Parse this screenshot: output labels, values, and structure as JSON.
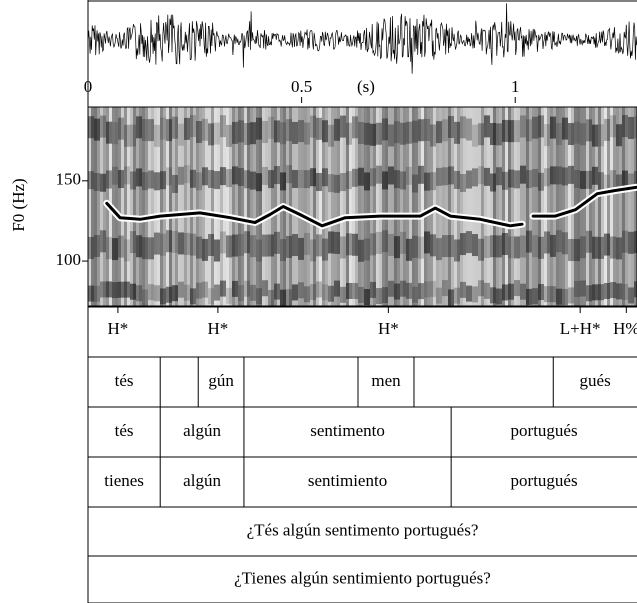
{
  "chart_data": {
    "type": "line",
    "xlabel": "(s)",
    "ylabel": "F0 (Hz)",
    "xlim": [
      0,
      1.285
    ],
    "xticks": [
      0,
      0.5,
      1
    ],
    "ylim": [
      72,
      196
    ],
    "yticks": [
      100,
      150
    ],
    "series": [
      {
        "color": "#000000",
        "x": [
          0.044,
          0.075,
          0.122,
          0.169,
          0.262,
          0.333,
          0.391,
          0.426,
          0.457,
          0.496,
          0.548,
          0.602,
          0.684,
          0.778,
          0.813,
          0.848,
          0.918,
          0.988,
          1.016,
          1.03,
          1.042,
          1.094,
          1.141,
          1.192,
          1.234,
          1.285
        ],
        "values": [
          136,
          127,
          126,
          128,
          130,
          127,
          124,
          129,
          134,
          129,
          122,
          127,
          128,
          128,
          133,
          128,
          126,
          122,
          123,
          null,
          128,
          128,
          132,
          142,
          144,
          146
        ]
      }
    ],
    "tiers": [
      {
        "points": [
          0.07,
          0.304,
          0.703,
          1.152,
          1.26
        ],
        "labels": [
          "H*",
          "H*",
          "H*",
          "L+H*",
          "H%"
        ]
      },
      {
        "bounds": [
          0.169,
          0.258,
          0.365,
          0.632,
          0.763,
          1.089
        ],
        "labels": [
          "tés",
          null,
          "gún",
          null,
          "men",
          null,
          "gués"
        ]
      },
      {
        "bounds": [
          0.169,
          0.365,
          0.85
        ],
        "labels": [
          "tés",
          "algún",
          "sentimento",
          "portugués"
        ]
      },
      {
        "bounds": [
          0.169,
          0.365,
          0.85
        ],
        "labels": [
          "tienes",
          "algún",
          "sentimiento",
          "portugués"
        ]
      },
      {
        "bounds": [],
        "labels": [
          "¿Tés algún sentimento portugués?"
        ]
      },
      {
        "bounds": [],
        "labels": [
          "¿Tienes algún sentimiento portugués?"
        ]
      }
    ]
  }
}
